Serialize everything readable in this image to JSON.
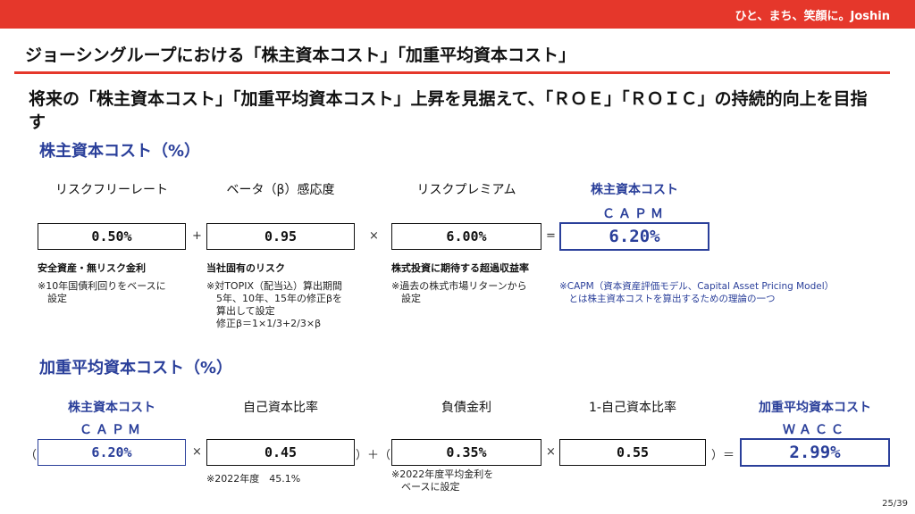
{
  "header": {
    "tagline": "ひと、まち、笑顔に。Joshin"
  },
  "slide": {
    "title": "ジョーシングループにおける「株主資本コスト」「加重平均資本コスト」",
    "lead": "将来の「株主資本コスト」「加重平均資本コスト」上昇を見据えて、「ＲＯＥ」「ＲＯＩＣ」の持続的向上を目指す"
  },
  "capm": {
    "section_title": "株主資本コスト（%）",
    "headers": [
      "リスクフリーレート",
      "ベータ（β）感応度",
      "リスクプレミアム",
      "株主資本コスト"
    ],
    "result_sub": "ＣＡＰＭ",
    "values": [
      "0.50%",
      "0.95",
      "6.00%",
      "6.20%"
    ],
    "operators": [
      "+",
      "×",
      "="
    ],
    "descriptions": [
      "安全資産・無リスク金利",
      "当社固有のリスク",
      "株式投資に期待する超過収益率"
    ],
    "notes": [
      "※10年国債利回りをベースに\n　設定",
      "※対TOPIX（配当込）算出期間\n　5年、10年、15年の修正βを\n　算出して設定\n　修正β＝1×1/3+2/3×β",
      "※過去の株式市場リターンから\n　設定",
      "※CAPM（資本資産評価モデル、Capital Asset Pricing Model）\n　とは株主資本コストを算出するための理論の一つ"
    ]
  },
  "wacc": {
    "section_title": "加重平均資本コスト（%）",
    "headers": [
      "株主資本コスト",
      "自己資本比率",
      "負債金利",
      "1-自己資本比率",
      "加重平均資本コスト"
    ],
    "subs": [
      "ＣＡＰＭ",
      "ＷＡＣＣ"
    ],
    "values": [
      "6.20%",
      "0.45",
      "0.35%",
      "0.55",
      "2.99%"
    ],
    "symbols": [
      "（",
      "×",
      "）＋（",
      "×",
      "）＝"
    ],
    "notes": [
      "※2022年度　45.1%",
      "※2022年度平均金利を\n　ベースに設定"
    ]
  },
  "footer": {
    "page": "25/39"
  }
}
